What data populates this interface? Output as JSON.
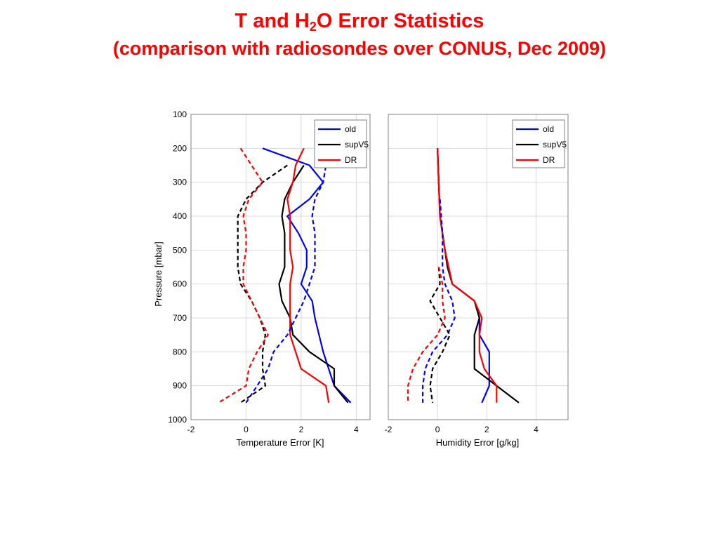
{
  "title": {
    "line1_part1": "T and H",
    "line1_sub": "2",
    "line1_part2": "O Error Statistics",
    "line2": "(comparison with radiosondes over CONUS, Dec 2009)"
  },
  "colors": {
    "old": "#0000ff",
    "supV5": "#000000",
    "DR": "#ff0000",
    "title": "#ff0000"
  },
  "chart_data": [
    {
      "type": "line",
      "xlabel": "Temperature Error [K]",
      "ylabel": "Pressure [mbar]",
      "xlim": [
        -2,
        4.5
      ],
      "ylim": [
        100,
        1000
      ],
      "y_inverted": true,
      "x_ticks": [
        "-2",
        "0",
        "2",
        "4"
      ],
      "y_ticks": [
        "100",
        "200",
        "300",
        "400",
        "500",
        "600",
        "700",
        "800",
        "900",
        "1000"
      ],
      "grid": true,
      "legend": {
        "placement": "top-right",
        "entries": [
          "old",
          "supV5",
          "DR"
        ]
      },
      "series": [
        {
          "name": "old",
          "style": "solid",
          "color": "#0000ff",
          "points": [
            [
              0.6,
              200
            ],
            [
              2.3,
              250
            ],
            [
              2.8,
              300
            ],
            [
              2.3,
              350
            ],
            [
              1.5,
              400
            ],
            [
              1.9,
              450
            ],
            [
              2.2,
              500
            ],
            [
              2.2,
              550
            ],
            [
              2.0,
              600
            ],
            [
              2.4,
              650
            ],
            [
              2.5,
              700
            ],
            [
              2.8,
              800
            ],
            [
              3.2,
              900
            ],
            [
              3.8,
              950
            ]
          ]
        },
        {
          "name": "supV5",
          "style": "solid",
          "color": "#000000",
          "points": [
            [
              2.1,
              250
            ],
            [
              1.7,
              300
            ],
            [
              1.4,
              350
            ],
            [
              1.3,
              400
            ],
            [
              1.4,
              450
            ],
            [
              1.4,
              500
            ],
            [
              1.4,
              550
            ],
            [
              1.2,
              600
            ],
            [
              1.3,
              650
            ],
            [
              1.6,
              700
            ],
            [
              1.7,
              750
            ],
            [
              2.3,
              800
            ],
            [
              3.2,
              850
            ],
            [
              3.2,
              900
            ],
            [
              3.7,
              950
            ]
          ]
        },
        {
          "name": "DR",
          "style": "solid",
          "color": "#ff0000",
          "points": [
            [
              2.1,
              200
            ],
            [
              1.8,
              250
            ],
            [
              1.7,
              300
            ],
            [
              1.5,
              350
            ],
            [
              1.6,
              400
            ],
            [
              1.6,
              450
            ],
            [
              1.6,
              500
            ],
            [
              1.7,
              550
            ],
            [
              1.6,
              600
            ],
            [
              1.6,
              650
            ],
            [
              1.6,
              700
            ],
            [
              1.6,
              750
            ],
            [
              2.0,
              850
            ],
            [
              2.9,
              900
            ],
            [
              3.0,
              950
            ]
          ]
        },
        {
          "name": "old",
          "style": "dashed",
          "color": "#0000ff",
          "points": [
            [
              2.6,
              220
            ],
            [
              2.9,
              250
            ],
            [
              2.8,
              300
            ],
            [
              2.5,
              350
            ],
            [
              2.4,
              400
            ],
            [
              2.5,
              450
            ],
            [
              2.5,
              550
            ],
            [
              2.3,
              600
            ],
            [
              2.1,
              650
            ],
            [
              1.8,
              700
            ],
            [
              1.5,
              750
            ],
            [
              1.0,
              800
            ],
            [
              0.8,
              850
            ],
            [
              0.4,
              900
            ],
            [
              0.0,
              950
            ]
          ]
        },
        {
          "name": "supV5",
          "style": "dashed",
          "color": "#000000",
          "points": [
            [
              1.5,
              250
            ],
            [
              0.6,
              300
            ],
            [
              0.0,
              350
            ],
            [
              -0.3,
              400
            ],
            [
              -0.3,
              450
            ],
            [
              -0.3,
              500
            ],
            [
              -0.3,
              550
            ],
            [
              -0.2,
              600
            ],
            [
              0.2,
              650
            ],
            [
              0.5,
              700
            ],
            [
              0.7,
              750
            ],
            [
              0.6,
              800
            ],
            [
              0.6,
              850
            ],
            [
              0.7,
              900
            ],
            [
              -0.2,
              950
            ]
          ]
        },
        {
          "name": "DR",
          "style": "dashed",
          "color": "#ff0000",
          "points": [
            [
              -0.2,
              200
            ],
            [
              0.2,
              250
            ],
            [
              0.6,
              300
            ],
            [
              0.1,
              350
            ],
            [
              -0.1,
              400
            ],
            [
              0.0,
              450
            ],
            [
              0.0,
              500
            ],
            [
              -0.1,
              550
            ],
            [
              -0.1,
              600
            ],
            [
              0.2,
              650
            ],
            [
              0.5,
              700
            ],
            [
              0.8,
              750
            ],
            [
              0.4,
              800
            ],
            [
              0.1,
              850
            ],
            [
              0.0,
              900
            ],
            [
              -1.0,
              950
            ]
          ]
        }
      ]
    },
    {
      "type": "line",
      "xlabel": "Humidity Error [g/kg]",
      "ylabel": "",
      "xlim": [
        -2,
        5.3
      ],
      "ylim": [
        100,
        1000
      ],
      "y_inverted": true,
      "x_ticks": [
        "-2",
        "0",
        "2",
        "4"
      ],
      "y_ticks": [],
      "grid": true,
      "legend": {
        "placement": "top-right",
        "entries": [
          "old",
          "supV5",
          "DR"
        ]
      },
      "series": [
        {
          "name": "old",
          "style": "solid",
          "color": "#0000ff",
          "points": [
            [
              0.0,
              200
            ],
            [
              0.05,
              300
            ],
            [
              0.1,
              400
            ],
            [
              0.3,
              500
            ],
            [
              0.6,
              600
            ],
            [
              1.5,
              650
            ],
            [
              1.7,
              700
            ],
            [
              1.7,
              750
            ],
            [
              2.1,
              800
            ],
            [
              2.1,
              850
            ],
            [
              2.1,
              900
            ],
            [
              1.8,
              950
            ]
          ]
        },
        {
          "name": "supV5",
          "style": "solid",
          "color": "#000000",
          "points": [
            [
              0.0,
              200
            ],
            [
              0.05,
              300
            ],
            [
              0.1,
              400
            ],
            [
              0.4,
              550
            ],
            [
              0.6,
              600
            ],
            [
              1.5,
              650
            ],
            [
              1.7,
              700
            ],
            [
              1.5,
              750
            ],
            [
              1.5,
              800
            ],
            [
              1.5,
              850
            ],
            [
              2.4,
              900
            ],
            [
              3.3,
              950
            ]
          ]
        },
        {
          "name": "DR",
          "style": "solid",
          "color": "#ff0000",
          "points": [
            [
              0.0,
              200
            ],
            [
              0.05,
              300
            ],
            [
              0.1,
              400
            ],
            [
              0.3,
              500
            ],
            [
              0.6,
              600
            ],
            [
              1.5,
              650
            ],
            [
              1.8,
              700
            ],
            [
              1.7,
              750
            ],
            [
              1.7,
              800
            ],
            [
              1.9,
              850
            ],
            [
              2.4,
              900
            ],
            [
              2.4,
              950
            ]
          ]
        },
        {
          "name": "old",
          "style": "dashed",
          "color": "#0000ff",
          "points": [
            [
              0.1,
              350
            ],
            [
              0.2,
              450
            ],
            [
              0.2,
              550
            ],
            [
              0.3,
              600
            ],
            [
              0.6,
              650
            ],
            [
              0.7,
              700
            ],
            [
              0.4,
              750
            ],
            [
              -0.2,
              800
            ],
            [
              -0.5,
              850
            ],
            [
              -0.6,
              900
            ],
            [
              -0.6,
              950
            ]
          ]
        },
        {
          "name": "supV5",
          "style": "dashed",
          "color": "#000000",
          "points": [
            [
              0.05,
              550
            ],
            [
              0.1,
              600
            ],
            [
              -0.3,
              650
            ],
            [
              0.1,
              700
            ],
            [
              0.5,
              750
            ],
            [
              0.2,
              800
            ],
            [
              -0.2,
              850
            ],
            [
              -0.3,
              900
            ],
            [
              -0.2,
              950
            ]
          ]
        },
        {
          "name": "DR",
          "style": "dashed",
          "color": "#ff0000",
          "points": [
            [
              0.05,
              550
            ],
            [
              0.2,
              600
            ],
            [
              0.2,
              650
            ],
            [
              0.3,
              700
            ],
            [
              0.0,
              750
            ],
            [
              -0.6,
              800
            ],
            [
              -1.0,
              850
            ],
            [
              -1.2,
              900
            ],
            [
              -1.2,
              950
            ]
          ]
        }
      ]
    }
  ]
}
